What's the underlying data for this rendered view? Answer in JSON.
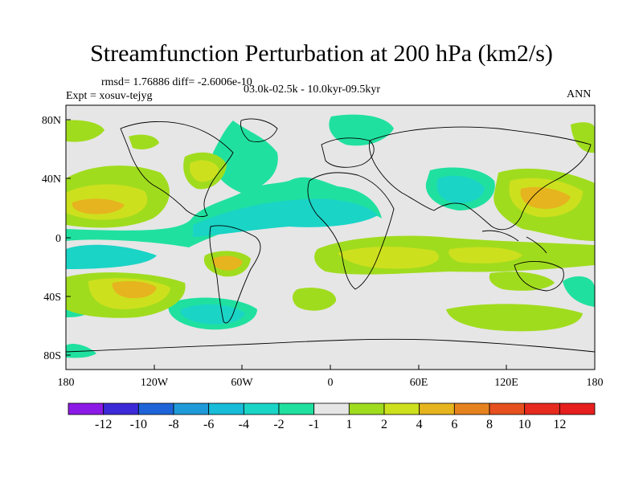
{
  "title": "Streamfunction Perturbation at 200 hPa (km2/s)",
  "stats": "rmsd= 1.76886 diff= -2.6006e-10",
  "expt": "Expt = xosuv-tejyg",
  "period": "03.0k-02.5k - 10.0kyr-09.5kyr",
  "season": "ANN",
  "axes": {
    "x_ticks": [
      "180",
      "120W",
      "60W",
      "0",
      "60E",
      "120E",
      "180"
    ],
    "y_ticks": [
      "80N",
      "40N",
      "0",
      "40S",
      "80S"
    ]
  },
  "colorbar": {
    "labels": [
      "-12",
      "-10",
      "-8",
      "-6",
      "-4",
      "-2",
      "-1",
      "1",
      "2",
      "4",
      "6",
      "8",
      "10",
      "12"
    ],
    "colors": [
      "#8c1ae6",
      "#3c2ad8",
      "#1e64d8",
      "#1e9ad8",
      "#18bcd8",
      "#1ad4c6",
      "#20e0a0",
      "#e6e6e6",
      "#a0dc1e",
      "#cde01e",
      "#e6b41e",
      "#e6821e",
      "#e6501e",
      "#e62a1e",
      "#e61e1e"
    ]
  }
}
